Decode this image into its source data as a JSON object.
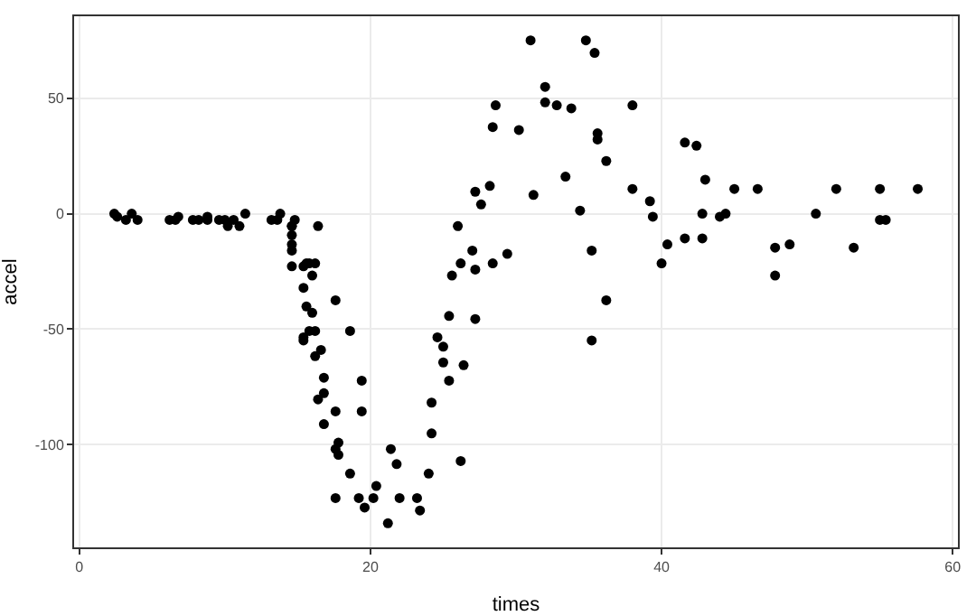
{
  "chart_data": {
    "type": "scatter",
    "xlabel": "times",
    "ylabel": "accel",
    "xlim": [
      -0.36,
      60.36
    ],
    "ylim": [
      -144.45,
      85.45
    ],
    "xticks": [
      0,
      20,
      40,
      60
    ],
    "yticks": [
      -100,
      -50,
      0,
      50
    ],
    "grid": true,
    "marker": "circle",
    "series": [
      {
        "color": "#000000",
        "x": [
          2.4,
          2.6,
          3.2,
          3.6,
          4.0,
          6.2,
          6.6,
          6.8,
          7.8,
          8.2,
          8.8,
          8.8,
          9.6,
          10.0,
          10.2,
          10.6,
          11.0,
          11.4,
          13.2,
          13.6,
          13.8,
          14.6,
          14.6,
          14.6,
          14.6,
          14.6,
          14.6,
          14.8,
          15.4,
          15.4,
          15.4,
          15.4,
          15.6,
          15.6,
          15.8,
          15.8,
          16.0,
          16.0,
          16.2,
          16.2,
          16.2,
          16.4,
          16.4,
          16.6,
          16.8,
          16.8,
          16.8,
          17.6,
          17.6,
          17.6,
          17.6,
          17.8,
          17.8,
          18.6,
          18.6,
          19.2,
          19.4,
          19.4,
          19.6,
          20.2,
          20.4,
          21.2,
          21.4,
          21.8,
          22.0,
          23.2,
          23.4,
          24.0,
          24.2,
          24.2,
          24.6,
          25.0,
          25.0,
          25.4,
          25.4,
          25.6,
          26.0,
          26.2,
          26.2,
          26.4,
          27.0,
          27.2,
          27.2,
          27.2,
          27.6,
          28.2,
          28.4,
          28.4,
          28.6,
          29.4,
          30.2,
          31.0,
          31.2,
          32.0,
          32.0,
          32.8,
          33.4,
          33.8,
          34.4,
          34.8,
          35.2,
          35.2,
          35.4,
          35.6,
          35.6,
          36.2,
          36.2,
          38.0,
          38.0,
          39.2,
          39.4,
          40.0,
          40.4,
          41.6,
          41.6,
          42.4,
          42.8,
          42.8,
          43.0,
          44.0,
          44.4,
          45.0,
          46.6,
          47.8,
          47.8,
          48.8,
          50.6,
          52.0,
          53.2,
          55.0,
          55.0,
          55.4,
          57.6
        ],
        "values": [
          0.0,
          -1.3,
          -2.7,
          0.0,
          -2.7,
          -2.7,
          -2.7,
          -1.3,
          -2.7,
          -2.7,
          -1.3,
          -2.7,
          -2.7,
          -2.7,
          -5.4,
          -2.7,
          -5.4,
          0.0,
          -2.7,
          -2.7,
          0.0,
          -13.3,
          -5.4,
          -5.4,
          -9.3,
          -16.0,
          -22.8,
          -2.7,
          -22.8,
          -32.1,
          -53.5,
          -54.9,
          -40.2,
          -21.5,
          -21.5,
          -50.8,
          -42.9,
          -26.8,
          -21.5,
          -50.8,
          -61.7,
          -5.4,
          -80.4,
          -59.0,
          -71.0,
          -91.1,
          -77.7,
          -37.5,
          -85.6,
          -123.1,
          -101.9,
          -99.1,
          -104.4,
          -112.5,
          -50.8,
          -123.1,
          -85.6,
          -72.3,
          -127.2,
          -123.1,
          -117.9,
          -134.0,
          -101.9,
          -108.4,
          -123.1,
          -123.1,
          -128.5,
          -112.5,
          -95.1,
          -81.8,
          -53.5,
          -64.4,
          -57.6,
          -72.3,
          -44.3,
          -26.8,
          -5.4,
          -107.1,
          -21.5,
          -65.6,
          -16.0,
          -45.6,
          -24.2,
          9.5,
          4.0,
          12.0,
          -21.5,
          37.5,
          46.9,
          -17.4,
          36.2,
          75.0,
          8.1,
          54.9,
          48.2,
          46.9,
          16.0,
          45.6,
          1.3,
          75.0,
          -16.0,
          -54.9,
          69.6,
          34.8,
          32.1,
          -37.5,
          22.8,
          46.9,
          10.7,
          5.4,
          -1.3,
          -21.5,
          -13.3,
          30.8,
          -10.7,
          29.4,
          0.0,
          -10.7,
          14.7,
          -1.3,
          0.0,
          10.7,
          10.7,
          -26.8,
          -14.7,
          -13.3,
          0.0,
          10.7,
          -14.7,
          -2.7,
          10.7,
          -2.7,
          10.7
        ]
      }
    ]
  }
}
